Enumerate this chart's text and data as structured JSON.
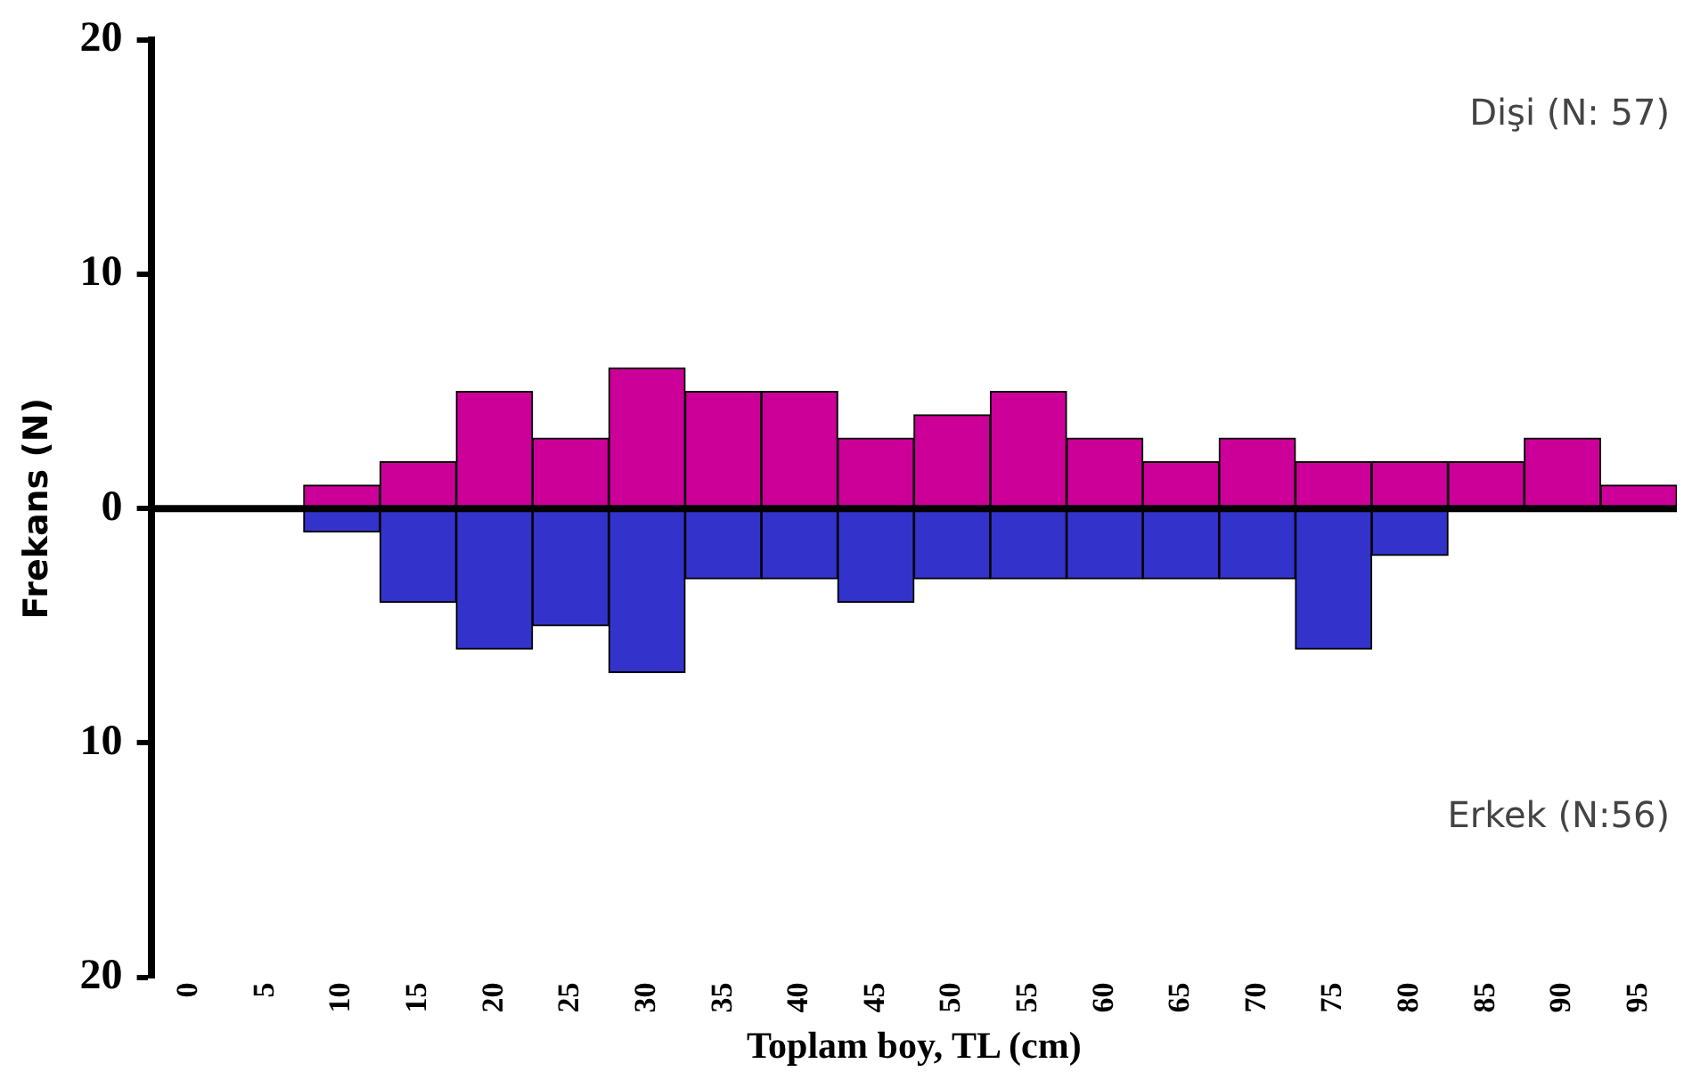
{
  "chart_data": {
    "type": "bar",
    "stacked": true,
    "xlabel": "Toplam boy, TL (cm)",
    "ylabel": "Frekans (N)",
    "categories": [
      "0",
      "5",
      "10",
      "15",
      "20",
      "25",
      "30",
      "35",
      "40",
      "45",
      "50",
      "55",
      "60",
      "65",
      "70",
      "75",
      "80",
      "85",
      "90",
      "95"
    ],
    "series": [
      {
        "color": "#cc0099",
        "values": [
          0,
          0,
          1,
          2,
          5,
          3,
          6,
          5,
          5,
          3,
          4,
          5,
          3,
          2,
          3,
          2,
          2,
          2,
          3,
          1
        ]
      },
      {
        "color": "#3333cc",
        "values": [
          0,
          0,
          -1,
          -4,
          -6,
          -5,
          -7,
          -3,
          -3,
          -4,
          -3,
          -3,
          -3,
          -3,
          -3,
          -6,
          -2,
          0,
          0,
          0
        ]
      }
    ],
    "ylim": [
      -20,
      20
    ],
    "yticks": [
      {
        "value": -20,
        "label": "20"
      },
      {
        "value": -10,
        "label": "10"
      },
      0,
      10,
      20
    ],
    "ref_lines": [
      {
        "axis": "y",
        "value": 0,
        "color": "#000000"
      }
    ],
    "annotations": [
      "Dişi (N: 57)",
      "Erkek (N:56)"
    ],
    "grid": false,
    "legend": false
  }
}
